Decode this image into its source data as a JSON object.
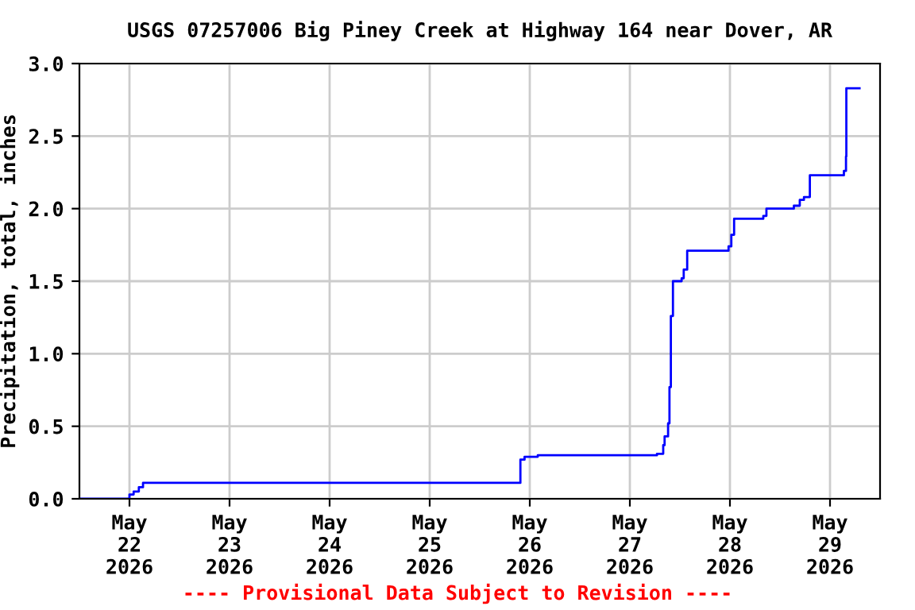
{
  "chart_data": {
    "type": "step",
    "title": "USGS 07257006 Big Piney Creek at Highway 164 near Dover, AR",
    "ylabel": "Precipitation, total, inches",
    "annotations": [
      "---- Provisional Data Subject to Revision ----"
    ],
    "x": [
      "2026-05-21T12:00",
      "2026-05-22T00:00",
      "2026-05-22T01:00",
      "2026-05-22T02:15",
      "2026-05-22T03:15",
      "2026-05-25T21:45",
      "2026-05-25T22:45",
      "2026-05-26T01:55",
      "2026-05-27T06:30",
      "2026-05-27T08:00",
      "2026-05-27T08:20",
      "2026-05-27T09:10",
      "2026-05-27T09:30",
      "2026-05-27T09:50",
      "2026-05-27T10:20",
      "2026-05-27T12:25",
      "2026-05-27T12:55",
      "2026-05-27T13:45",
      "2026-05-27T23:40",
      "2026-05-28T00:20",
      "2026-05-28T01:00",
      "2026-05-28T08:00",
      "2026-05-28T08:45",
      "2026-05-28T15:20",
      "2026-05-28T16:45",
      "2026-05-28T17:45",
      "2026-05-28T19:10",
      "2026-05-29T03:20",
      "2026-05-29T03:50",
      "2026-05-29T03:55",
      "2026-05-29T07:05"
    ],
    "series": [
      {
        "color": "#0000ff",
        "values": [
          0,
          0.03,
          0.05,
          0.08,
          0.11,
          0.27,
          0.29,
          0.3,
          0.31,
          0.37,
          0.43,
          0.52,
          0.77,
          1.26,
          1.5,
          1.52,
          1.58,
          1.71,
          1.74,
          1.82,
          1.93,
          1.95,
          2.0,
          2.02,
          2.06,
          2.08,
          2.23,
          2.26,
          2.36,
          2.83,
          2.83
        ]
      }
    ],
    "xlim": [
      "2026-05-21T12:00",
      "2026-05-29T12:00"
    ],
    "xticks": [
      {
        "value": "2026-05-22",
        "label": "May\n22\n2026"
      },
      {
        "value": "2026-05-23",
        "label": "May\n23\n2026"
      },
      {
        "value": "2026-05-24",
        "label": "May\n24\n2026"
      },
      {
        "value": "2026-05-25",
        "label": "May\n25\n2026"
      },
      {
        "value": "2026-05-26",
        "label": "May\n26\n2026"
      },
      {
        "value": "2026-05-27",
        "label": "May\n27\n2026"
      },
      {
        "value": "2026-05-28",
        "label": "May\n28\n2026"
      },
      {
        "value": "2026-05-29",
        "label": "May\n29\n2026"
      }
    ],
    "ylim": [
      0,
      3.0
    ],
    "yticks": [
      {
        "value": 0,
        "label": "0.0"
      },
      {
        "value": 0.5,
        "label": "0.5"
      },
      {
        "value": 1.0,
        "label": "1.0"
      },
      {
        "value": 1.5,
        "label": "1.5"
      },
      {
        "value": 2.0,
        "label": "2.0"
      },
      {
        "value": 2.5,
        "label": "2.5"
      },
      {
        "value": 3.0,
        "label": "3.0"
      }
    ],
    "grid": true,
    "legend": false
  }
}
